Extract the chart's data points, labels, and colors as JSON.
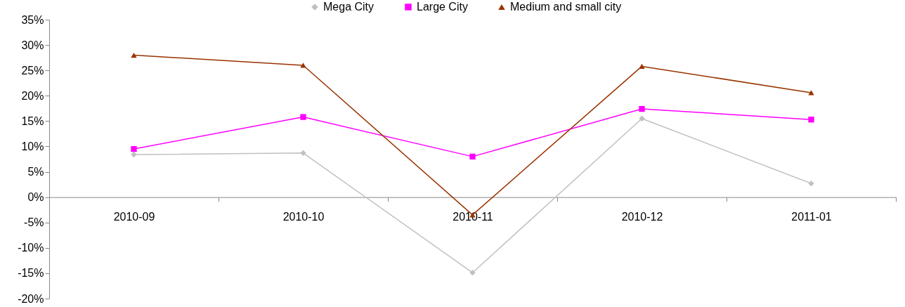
{
  "chart_data": {
    "type": "line",
    "categories": [
      "2010-09",
      "2010-10",
      "2010-11",
      "2010-12",
      "2011-01"
    ],
    "series": [
      {
        "name": "Mega City",
        "color": "#c0c0c0",
        "marker": "diamond",
        "values": [
          8.4,
          8.7,
          -14.9,
          15.5,
          2.7
        ]
      },
      {
        "name": "Large City",
        "color": "#ff00ff",
        "marker": "square",
        "values": [
          9.5,
          15.8,
          8.0,
          17.4,
          15.3
        ]
      },
      {
        "name": "Medium and small city",
        "color": "#993300",
        "marker": "triangle",
        "values": [
          28.0,
          26.0,
          -3.5,
          25.8,
          20.6
        ]
      }
    ],
    "ylim": [
      -20,
      35
    ],
    "yticks": [
      {
        "value": -20,
        "label": "-20%"
      },
      {
        "value": -15,
        "label": "-15%"
      },
      {
        "value": -10,
        "label": "-10%"
      },
      {
        "value": -5,
        "label": "-5%"
      },
      {
        "value": 0,
        "label": "0%"
      },
      {
        "value": 5,
        "label": "5%"
      },
      {
        "value": 10,
        "label": "10%"
      },
      {
        "value": 15,
        "label": "15%"
      },
      {
        "value": 20,
        "label": "20%"
      },
      {
        "value": 25,
        "label": "25%"
      },
      {
        "value": 30,
        "label": "30%"
      },
      {
        "value": 35,
        "label": "35%"
      }
    ],
    "grid": false,
    "legend": "top",
    "line_style": "solid"
  }
}
